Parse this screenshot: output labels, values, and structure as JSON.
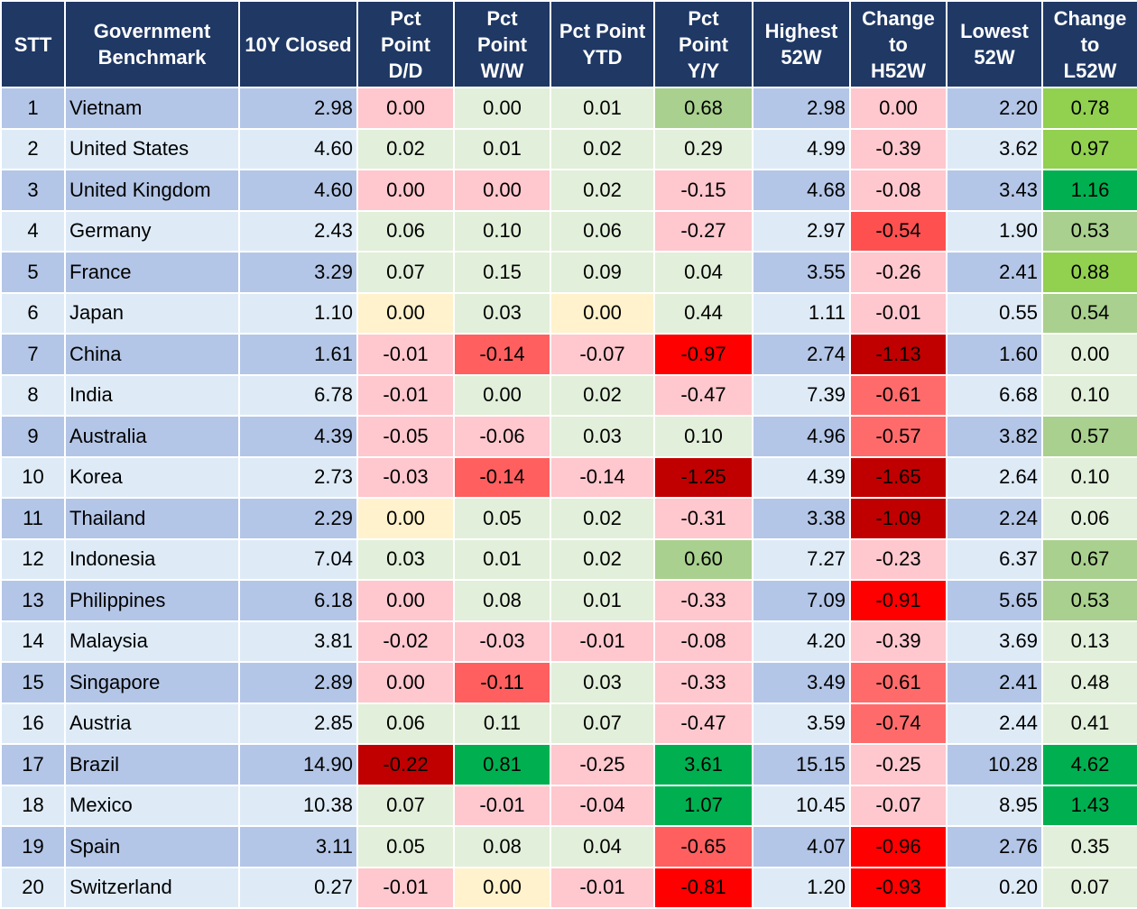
{
  "chart_data": {
    "type": "table",
    "columns": [
      {
        "key": "stt",
        "label": [
          "STT"
        ]
      },
      {
        "key": "benchmark",
        "label": [
          "Government",
          "Benchmark"
        ]
      },
      {
        "key": "closed",
        "label": [
          "10Y Closed"
        ]
      },
      {
        "key": "dd",
        "label": [
          "Pct",
          "Point",
          "D/D"
        ]
      },
      {
        "key": "ww",
        "label": [
          "Pct",
          "Point",
          "W/W"
        ]
      },
      {
        "key": "ytd",
        "label": [
          "Pct Point",
          "YTD"
        ]
      },
      {
        "key": "yy",
        "label": [
          "Pct",
          "Point",
          "Y/Y"
        ]
      },
      {
        "key": "high",
        "label": [
          "Highest",
          "52W"
        ]
      },
      {
        "key": "ch_high",
        "label": [
          "Change",
          "to",
          "H52W"
        ]
      },
      {
        "key": "low",
        "label": [
          "Lowest",
          "52W"
        ]
      },
      {
        "key": "ch_low",
        "label": [
          "Change",
          "to",
          "L52W"
        ]
      }
    ],
    "rows": [
      {
        "stt": "1",
        "benchmark": "Vietnam",
        "closed": "2.98",
        "dd": "0.00",
        "ww": "0.00",
        "ytd": "0.01",
        "yy": "0.68",
        "high": "2.98",
        "ch_high": "0.00",
        "low": "2.20",
        "ch_low": "0.78"
      },
      {
        "stt": "2",
        "benchmark": "United States",
        "closed": "4.60",
        "dd": "0.02",
        "ww": "0.01",
        "ytd": "0.02",
        "yy": "0.29",
        "high": "4.99",
        "ch_high": "-0.39",
        "low": "3.62",
        "ch_low": "0.97"
      },
      {
        "stt": "3",
        "benchmark": "United Kingdom",
        "closed": "4.60",
        "dd": "0.00",
        "ww": "0.00",
        "ytd": "0.02",
        "yy": "-0.15",
        "high": "4.68",
        "ch_high": "-0.08",
        "low": "3.43",
        "ch_low": "1.16"
      },
      {
        "stt": "4",
        "benchmark": "Germany",
        "closed": "2.43",
        "dd": "0.06",
        "ww": "0.10",
        "ytd": "0.06",
        "yy": "-0.27",
        "high": "2.97",
        "ch_high": "-0.54",
        "low": "1.90",
        "ch_low": "0.53"
      },
      {
        "stt": "5",
        "benchmark": "France",
        "closed": "3.29",
        "dd": "0.07",
        "ww": "0.15",
        "ytd": "0.09",
        "yy": "0.04",
        "high": "3.55",
        "ch_high": "-0.26",
        "low": "2.41",
        "ch_low": "0.88"
      },
      {
        "stt": "6",
        "benchmark": "Japan",
        "closed": "1.10",
        "dd": "0.00",
        "ww": "0.03",
        "ytd": "0.00",
        "yy": "0.44",
        "high": "1.11",
        "ch_high": "-0.01",
        "low": "0.55",
        "ch_low": "0.54"
      },
      {
        "stt": "7",
        "benchmark": "China",
        "closed": "1.61",
        "dd": "-0.01",
        "ww": "-0.14",
        "ytd": "-0.07",
        "yy": "-0.97",
        "high": "2.74",
        "ch_high": "-1.13",
        "low": "1.60",
        "ch_low": "0.00"
      },
      {
        "stt": "8",
        "benchmark": "India",
        "closed": "6.78",
        "dd": "-0.01",
        "ww": "0.00",
        "ytd": "0.02",
        "yy": "-0.47",
        "high": "7.39",
        "ch_high": "-0.61",
        "low": "6.68",
        "ch_low": "0.10"
      },
      {
        "stt": "9",
        "benchmark": "Australia",
        "closed": "4.39",
        "dd": "-0.05",
        "ww": "-0.06",
        "ytd": "0.03",
        "yy": "0.10",
        "high": "4.96",
        "ch_high": "-0.57",
        "low": "3.82",
        "ch_low": "0.57"
      },
      {
        "stt": "10",
        "benchmark": "Korea",
        "closed": "2.73",
        "dd": "-0.03",
        "ww": "-0.14",
        "ytd": "-0.14",
        "yy": "-1.25",
        "high": "4.39",
        "ch_high": "-1.65",
        "low": "2.64",
        "ch_low": "0.10"
      },
      {
        "stt": "11",
        "benchmark": "Thailand",
        "closed": "2.29",
        "dd": "0.00",
        "ww": "0.05",
        "ytd": "0.02",
        "yy": "-0.31",
        "high": "3.38",
        "ch_high": "-1.09",
        "low": "2.24",
        "ch_low": "0.06"
      },
      {
        "stt": "12",
        "benchmark": "Indonesia",
        "closed": "7.04",
        "dd": "0.03",
        "ww": "0.01",
        "ytd": "0.02",
        "yy": "0.60",
        "high": "7.27",
        "ch_high": "-0.23",
        "low": "6.37",
        "ch_low": "0.67"
      },
      {
        "stt": "13",
        "benchmark": "Philippines",
        "closed": "6.18",
        "dd": "0.00",
        "ww": "0.08",
        "ytd": "0.01",
        "yy": "-0.33",
        "high": "7.09",
        "ch_high": "-0.91",
        "low": "5.65",
        "ch_low": "0.53"
      },
      {
        "stt": "14",
        "benchmark": "Malaysia",
        "closed": "3.81",
        "dd": "-0.02",
        "ww": "-0.03",
        "ytd": "-0.01",
        "yy": "-0.08",
        "high": "4.20",
        "ch_high": "-0.39",
        "low": "3.69",
        "ch_low": "0.13"
      },
      {
        "stt": "15",
        "benchmark": "Singapore",
        "closed": "2.89",
        "dd": "0.00",
        "ww": "-0.11",
        "ytd": "0.03",
        "yy": "-0.33",
        "high": "3.49",
        "ch_high": "-0.61",
        "low": "2.41",
        "ch_low": "0.48"
      },
      {
        "stt": "16",
        "benchmark": "Austria",
        "closed": "2.85",
        "dd": "0.06",
        "ww": "0.11",
        "ytd": "0.07",
        "yy": "-0.47",
        "high": "3.59",
        "ch_high": "-0.74",
        "low": "2.44",
        "ch_low": "0.41"
      },
      {
        "stt": "17",
        "benchmark": "Brazil",
        "closed": "14.90",
        "dd": "-0.22",
        "ww": "0.81",
        "ytd": "-0.25",
        "yy": "3.61",
        "high": "15.15",
        "ch_high": "-0.25",
        "low": "10.28",
        "ch_low": "4.62"
      },
      {
        "stt": "18",
        "benchmark": "Mexico",
        "closed": "10.38",
        "dd": "0.07",
        "ww": "-0.01",
        "ytd": "-0.04",
        "yy": "1.07",
        "high": "10.45",
        "ch_high": "-0.07",
        "low": "8.95",
        "ch_low": "1.43"
      },
      {
        "stt": "19",
        "benchmark": "Spain",
        "closed": "3.11",
        "dd": "0.05",
        "ww": "0.08",
        "ytd": "0.04",
        "yy": "-0.65",
        "high": "4.07",
        "ch_high": "-0.96",
        "low": "2.76",
        "ch_low": "0.35"
      },
      {
        "stt": "20",
        "benchmark": "Switzerland",
        "closed": "0.27",
        "dd": "-0.01",
        "ww": "0.00",
        "ytd": "-0.01",
        "yy": "-0.81",
        "high": "1.20",
        "ch_high": "-0.93",
        "low": "0.20",
        "ch_low": "0.07"
      }
    ],
    "cell_colors": [
      {
        "dd": "#ffc7ce",
        "ww": "#e2efda",
        "ytd": "#e2efda",
        "yy": "#a9d08e",
        "ch_high": "#ffc7ce",
        "ch_low": "#92d050"
      },
      {
        "dd": "#e2efda",
        "ww": "#e2efda",
        "ytd": "#e2efda",
        "yy": "#e2efda",
        "ch_high": "#ffc7ce",
        "ch_low": "#92d050"
      },
      {
        "dd": "#ffc7ce",
        "ww": "#ffc7ce",
        "ytd": "#e2efda",
        "yy": "#ffc7ce",
        "ch_high": "#ffc7ce",
        "ch_low": "#00b050"
      },
      {
        "dd": "#e2efda",
        "ww": "#e2efda",
        "ytd": "#e2efda",
        "yy": "#ffc7ce",
        "ch_high": "#ff5050",
        "ch_low": "#a9d08e"
      },
      {
        "dd": "#e2efda",
        "ww": "#e2efda",
        "ytd": "#e2efda",
        "yy": "#e2efda",
        "ch_high": "#ffc7ce",
        "ch_low": "#92d050"
      },
      {
        "dd": "#fff2cc",
        "ww": "#e2efda",
        "ytd": "#fff2cc",
        "yy": "#e2efda",
        "ch_high": "#ffc7ce",
        "ch_low": "#a9d08e"
      },
      {
        "dd": "#ffc7ce",
        "ww": "#ff5f5f",
        "ytd": "#ffc7ce",
        "yy": "#ff0000",
        "ch_high": "#c00000",
        "ch_low": "#e2efda"
      },
      {
        "dd": "#ffc7ce",
        "ww": "#e2efda",
        "ytd": "#e2efda",
        "yy": "#ffc7ce",
        "ch_high": "#ff6b6b",
        "ch_low": "#e2efda"
      },
      {
        "dd": "#ffc7ce",
        "ww": "#ffc7ce",
        "ytd": "#e2efda",
        "yy": "#e2efda",
        "ch_high": "#ff6b6b",
        "ch_low": "#a9d08e"
      },
      {
        "dd": "#ffc7ce",
        "ww": "#ff5f5f",
        "ytd": "#ffc7ce",
        "yy": "#c00000",
        "ch_high": "#c00000",
        "ch_low": "#e2efda"
      },
      {
        "dd": "#fff2cc",
        "ww": "#e2efda",
        "ytd": "#e2efda",
        "yy": "#ffc7ce",
        "ch_high": "#c00000",
        "ch_low": "#e2efda"
      },
      {
        "dd": "#e2efda",
        "ww": "#e2efda",
        "ytd": "#e2efda",
        "yy": "#a9d08e",
        "ch_high": "#ffc7ce",
        "ch_low": "#a9d08e"
      },
      {
        "dd": "#ffc7ce",
        "ww": "#e2efda",
        "ytd": "#e2efda",
        "yy": "#ffc7ce",
        "ch_high": "#ff0000",
        "ch_low": "#a9d08e"
      },
      {
        "dd": "#ffc7ce",
        "ww": "#ffc7ce",
        "ytd": "#ffc7ce",
        "yy": "#ffc7ce",
        "ch_high": "#ffc7ce",
        "ch_low": "#e2efda"
      },
      {
        "dd": "#ffc7ce",
        "ww": "#ff5f5f",
        "ytd": "#e2efda",
        "yy": "#ffc7ce",
        "ch_high": "#ff6b6b",
        "ch_low": "#e2efda"
      },
      {
        "dd": "#e2efda",
        "ww": "#e2efda",
        "ytd": "#e2efda",
        "yy": "#ffc7ce",
        "ch_high": "#ff6b6b",
        "ch_low": "#e2efda"
      },
      {
        "dd": "#c00000",
        "ww": "#00b050",
        "ytd": "#ffc7ce",
        "yy": "#00b050",
        "ch_high": "#ffc7ce",
        "ch_low": "#00b050"
      },
      {
        "dd": "#e2efda",
        "ww": "#ffc7ce",
        "ytd": "#ffc7ce",
        "yy": "#00b050",
        "ch_high": "#ffc7ce",
        "ch_low": "#00b050"
      },
      {
        "dd": "#e2efda",
        "ww": "#e2efda",
        "ytd": "#e2efda",
        "yy": "#ff5f5f",
        "ch_high": "#ff0000",
        "ch_low": "#e2efda"
      },
      {
        "dd": "#ffc7ce",
        "ww": "#fff2cc",
        "ytd": "#ffc7ce",
        "yy": "#ff0000",
        "ch_high": "#ff0000",
        "ch_low": "#e2efda"
      }
    ],
    "colors": {
      "header_bg": "#1f3864",
      "header_text": "#ffffff",
      "row_odd": "#b4c6e7",
      "row_even": "#deebf7"
    }
  }
}
